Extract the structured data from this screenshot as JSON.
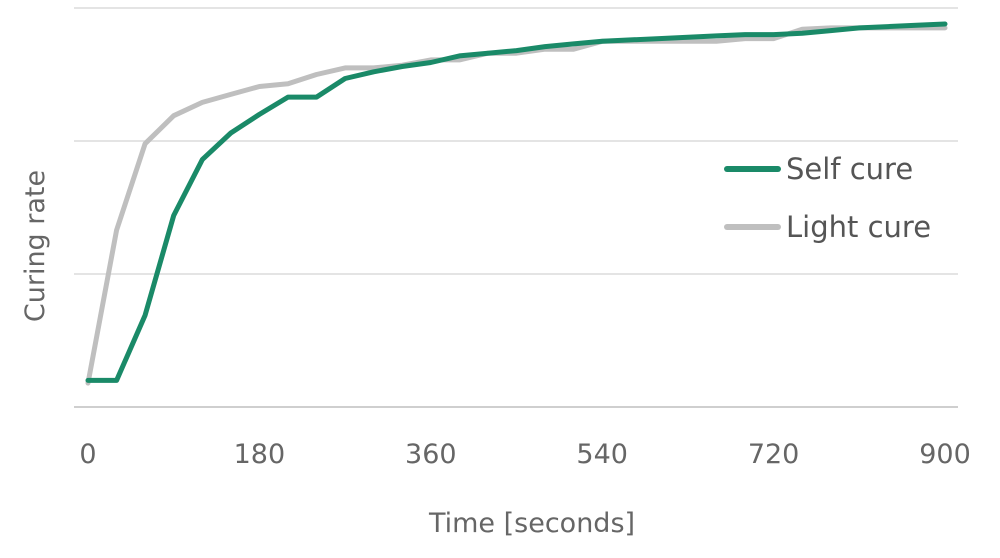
{
  "chart_data": {
    "type": "line",
    "xlabel": "Time [seconds]",
    "ylabel": "Curing rate",
    "xlim": [
      0,
      900
    ],
    "ylim": [
      0,
      3
    ],
    "x_ticks": [
      "0",
      "180",
      "360",
      "540",
      "720",
      "900"
    ],
    "x_tick_values": [
      0,
      180,
      360,
      540,
      720,
      900
    ],
    "y_gridlines": [
      0,
      1,
      2,
      3
    ],
    "y_tick_labels_visible": false,
    "grid": true,
    "legend_position": "right",
    "x": [
      0,
      30,
      60,
      90,
      120,
      150,
      180,
      210,
      240,
      270,
      300,
      330,
      360,
      390,
      420,
      450,
      480,
      510,
      540,
      570,
      600,
      630,
      660,
      690,
      720,
      750,
      780,
      810,
      840,
      870,
      900
    ],
    "series": [
      {
        "name": "Self cure",
        "color": "#1a8a68",
        "values": [
          0.2,
          0.2,
          0.69,
          1.44,
          1.86,
          2.06,
          2.2,
          2.33,
          2.33,
          2.47,
          2.52,
          2.56,
          2.59,
          2.64,
          2.66,
          2.68,
          2.71,
          2.73,
          2.75,
          2.76,
          2.77,
          2.78,
          2.79,
          2.8,
          2.8,
          2.81,
          2.83,
          2.85,
          2.86,
          2.87,
          2.88
        ]
      },
      {
        "name": "Light cure",
        "color": "#bfbfbf",
        "values": [
          0.18,
          1.33,
          1.98,
          2.19,
          2.29,
          2.35,
          2.41,
          2.43,
          2.5,
          2.55,
          2.55,
          2.57,
          2.61,
          2.61,
          2.66,
          2.66,
          2.69,
          2.69,
          2.75,
          2.75,
          2.75,
          2.75,
          2.75,
          2.77,
          2.77,
          2.84,
          2.85,
          2.85,
          2.85,
          2.85,
          2.85
        ]
      }
    ]
  }
}
